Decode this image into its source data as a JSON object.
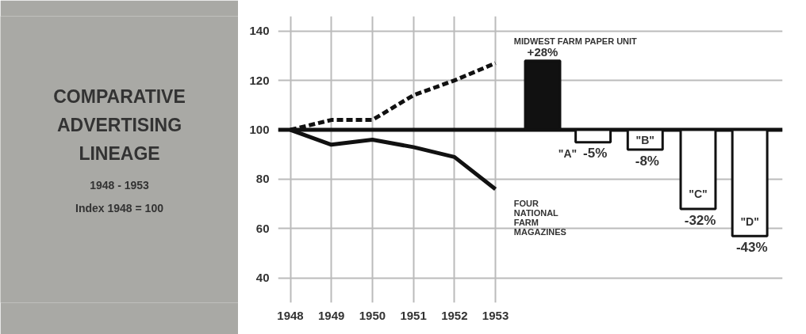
{
  "chart_data": {
    "type": "line",
    "title": "COMPARATIVE ADVERTISING LINEAGE",
    "subtitle": "1948 - 1953",
    "annotations": [
      "Index 1948 = 100",
      "\"A\"",
      "\"B\"",
      "\"C\"",
      "\"D\""
    ],
    "x": [
      1948,
      1949,
      1950,
      1951,
      1952,
      1953
    ],
    "xlim": [
      1947.7,
      1960.0
    ],
    "xticks": [
      1948,
      1949,
      1950,
      1951,
      1952,
      1953
    ],
    "ylim": [
      30,
      146
    ],
    "yticks": [
      40,
      60,
      80,
      100,
      120,
      140
    ],
    "grid": true,
    "marker": "none",
    "series": [
      {
        "name": "MIDWEST FARM PAPER UNIT",
        "color": "#111111",
        "line_style": "dashed",
        "values": [
          100,
          104,
          104,
          114,
          120,
          127
        ]
      },
      {
        "name": "FOUR NATIONAL FARM MAGAZINES",
        "color": "#111111",
        "line_style": "solid",
        "values": [
          100,
          94,
          96,
          93,
          89,
          76
        ]
      },
      {
        "type": "bar",
        "x": [
          1954.15,
          1955.38,
          1956.65,
          1957.94,
          1959.2
        ],
        "base": [
          100,
          100,
          100,
          100,
          100
        ],
        "values": [
          28,
          -5,
          -8,
          -32,
          -43
        ],
        "colors": [
          "#111111",
          "#ffffff",
          "#ffffff",
          "#ffffff",
          "#ffffff"
        ],
        "value_labels": [
          "+28%",
          "-5%",
          "-8%",
          "-32%",
          "-43%"
        ]
      }
    ],
    "ref_lines": [
      {
        "axis": "y",
        "value": 100,
        "color": "#111111"
      }
    ]
  }
}
